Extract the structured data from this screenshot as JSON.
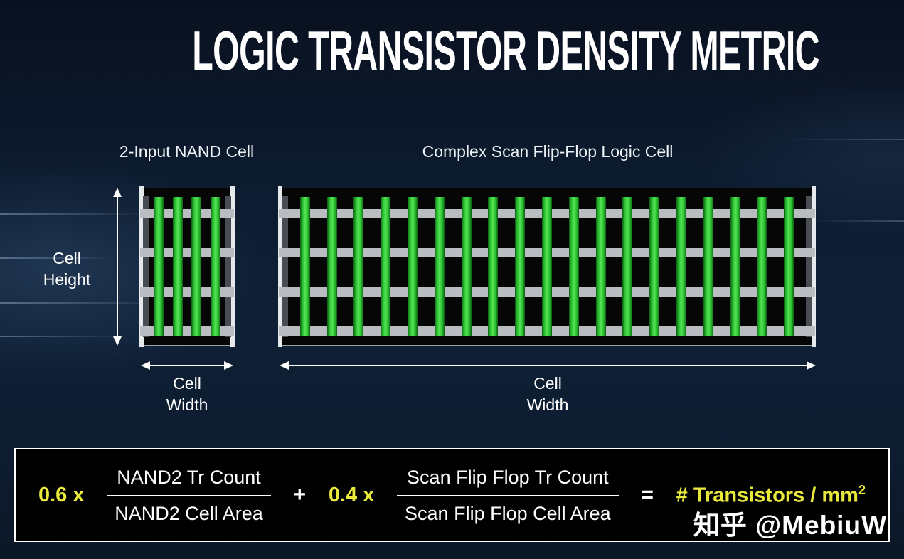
{
  "title": "LOGIC TRANSISTOR DENSITY METRIC",
  "diagram": {
    "rails": 4,
    "height_label": "Cell\nHeight",
    "cells": {
      "nand": {
        "label": "2-Input NAND Cell",
        "bars": 4,
        "width_label": "Cell\nWidth"
      },
      "flipflop": {
        "label": "Complex Scan Flip-Flop Logic Cell",
        "bars": 19,
        "width_label": "Cell\nWidth"
      }
    }
  },
  "formula": {
    "coefficient_1": "0.6 x",
    "fraction_1": {
      "numerator": "NAND2 Tr Count",
      "denominator": "NAND2 Cell Area"
    },
    "operator_plus": "+",
    "coefficient_2": "0.4 x",
    "fraction_2": {
      "numerator": "Scan Flip Flop Tr Count",
      "denominator": "Scan Flip Flop Cell Area"
    },
    "operator_equals": "=",
    "result": "# Transistors / mm",
    "result_exponent": "2"
  },
  "watermark": "知乎 @MebiuW",
  "colors": {
    "accent_yellow": "#e8e93a",
    "bar_green": "#2fc52f",
    "rail_gray": "#b9bdc1",
    "background_navy": "#0d1c30"
  }
}
